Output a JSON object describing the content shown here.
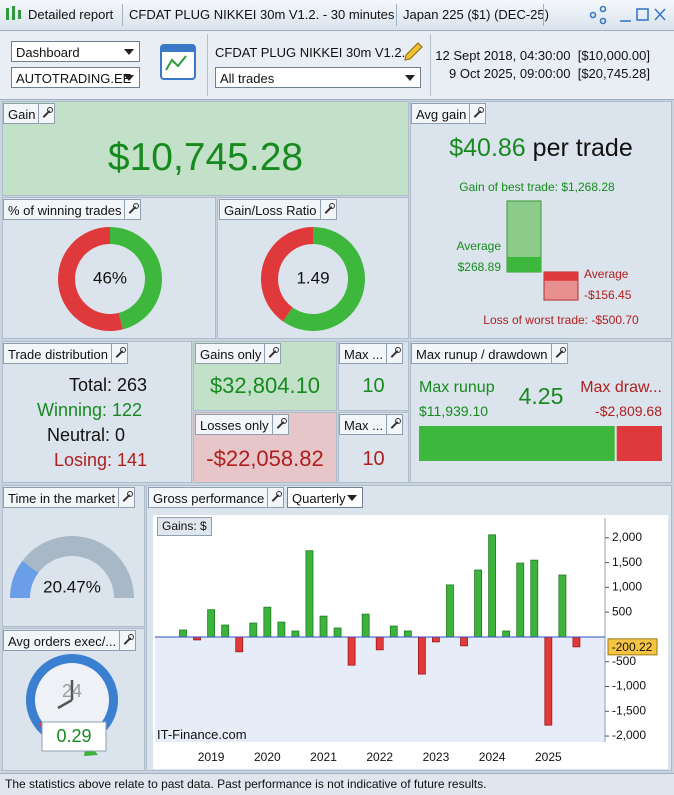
{
  "toolbar": {
    "tabs": [
      "Detailed report",
      "CFDAT PLUG NIKKEI 30m V1.2. - 30 minutes",
      "Japan 225 ($1) (DEC-25)"
    ]
  },
  "header": {
    "view_select": "Dashboard",
    "account_select": "AUTOTRADING.EE",
    "strategy": "CFDAT PLUG NIKKEI 30m V1.2.",
    "trades_select": "All trades",
    "start": "12 Sept 2018, 04:30:00",
    "start_balance": "[$10,000.00]",
    "end": "9 Oct 2025, 09:00:00",
    "end_balance": "[$20,745.28]"
  },
  "gain": {
    "title": "Gain",
    "value": "$10,745.28"
  },
  "avg_gain": {
    "title": "Avg gain",
    "value": "$40.86",
    "unit": "per trade",
    "best": {
      "label": "Gain of best trade: $1,268.28",
      "value": 1268.28
    },
    "avg_win": {
      "caption": "Average",
      "label": "$268.89",
      "value": 268.89
    },
    "avg_loss": {
      "caption": "Average",
      "label": "-$156.45",
      "value": -156.45
    },
    "worst": {
      "label": "Loss of worst trade: -$500.70",
      "value": -500.7
    }
  },
  "winning_trades": {
    "title": "% of winning trades",
    "label": "46%",
    "value": 46
  },
  "gain_loss_ratio": {
    "title": "Gain/Loss Ratio",
    "value": 1.49
  },
  "trade_distribution": {
    "title": "Trade distribution",
    "lines": [
      "Total: 263",
      "Winning: 122",
      "Neutral: 0",
      "Losing: 141"
    ]
  },
  "gains_only": {
    "title": "Gains only",
    "value": "$32,804.10"
  },
  "max_wins": {
    "title": "Max ...",
    "value": 10
  },
  "losses_only": {
    "title": "Losses only",
    "value": "-$22,058.82"
  },
  "max_losses": {
    "title": "Max ...",
    "value": 10
  },
  "runup_drawdown": {
    "title": "Max runup / drawdown",
    "runup_caption": "Max runup",
    "runup": {
      "label": "$11,939.10",
      "value": 11939.1
    },
    "ratio": 4.25,
    "drawdown_caption": "Max draw...",
    "drawdown": {
      "label": "-$2,809.68",
      "value": -2809.68
    }
  },
  "time_in_market": {
    "title": "Time in the market",
    "label": "20.47%",
    "value": 20.47
  },
  "avg_orders": {
    "title": "Avg orders exec/...",
    "clock_label": "24",
    "value": 0.29
  },
  "gross_performance": {
    "title": "Gross performance",
    "period_select": "Quarterly",
    "watermark": "IT-Finance.com"
  },
  "chart_data": {
    "type": "bar",
    "title": "Gains: $",
    "categories": [
      null,
      null,
      "2019",
      null,
      null,
      null,
      "2020",
      null,
      null,
      null,
      "2021",
      null,
      null,
      null,
      "2022",
      null,
      null,
      null,
      "2023",
      null,
      null,
      null,
      "2024",
      null,
      null,
      null,
      "2025",
      null,
      null
    ],
    "values": [
      140,
      -60,
      550,
      240,
      -300,
      280,
      600,
      300,
      120,
      1740,
      420,
      180,
      -570,
      460,
      -260,
      220,
      120,
      -750,
      -100,
      1050,
      -180,
      1350,
      2060,
      120,
      1490,
      1550,
      -1780,
      1250,
      -200.22
    ],
    "positive_color": "#3cb43c",
    "negative_color": "#e03a3a",
    "ylim": [
      -2120,
      2400
    ],
    "yticks": [
      {
        "value": -2000,
        "label": "-2,000"
      },
      {
        "value": -1500,
        "label": "-1,500"
      },
      {
        "value": -1000,
        "label": "-1,000"
      },
      -500,
      500,
      {
        "value": 1000,
        "label": "1,000"
      },
      {
        "value": 1500,
        "label": "1,500"
      },
      {
        "value": 2000,
        "label": "2,000"
      }
    ]
  },
  "footer": "The statistics above relate to past data. Past performance is not indicative of future results."
}
